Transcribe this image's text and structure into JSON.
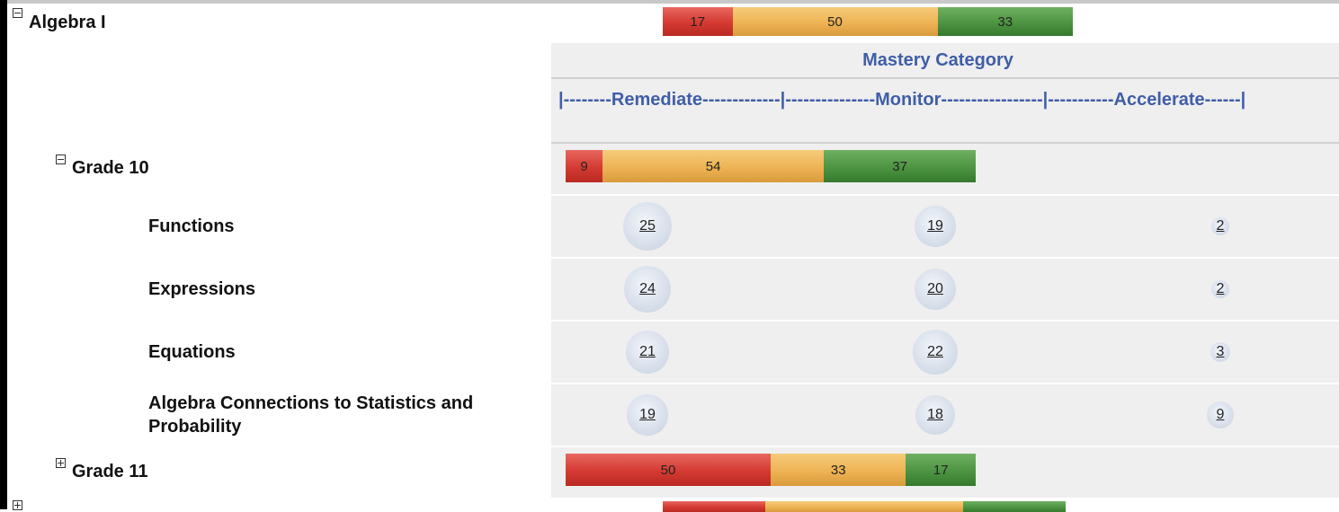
{
  "subject": {
    "name": "Algebra I",
    "bar": [
      17,
      50,
      33
    ]
  },
  "header": {
    "title": "Mastery Category",
    "legend": "|--------Remediate-------------|---------------Monitor-----------------|-----------Accelerate------|"
  },
  "grades": [
    {
      "name": "Grade 10",
      "bar": [
        9,
        54,
        37
      ],
      "topics": [
        {
          "name": "Functions",
          "counts": [
            25,
            19,
            2
          ]
        },
        {
          "name": "Expressions",
          "counts": [
            24,
            20,
            2
          ]
        },
        {
          "name": "Equations",
          "counts": [
            21,
            22,
            3
          ]
        },
        {
          "name": "Algebra Connections to Statistics and Probability",
          "counts": [
            19,
            18,
            9
          ]
        }
      ]
    },
    {
      "name": "Grade 11",
      "bar": [
        50,
        33,
        17
      ]
    }
  ]
}
